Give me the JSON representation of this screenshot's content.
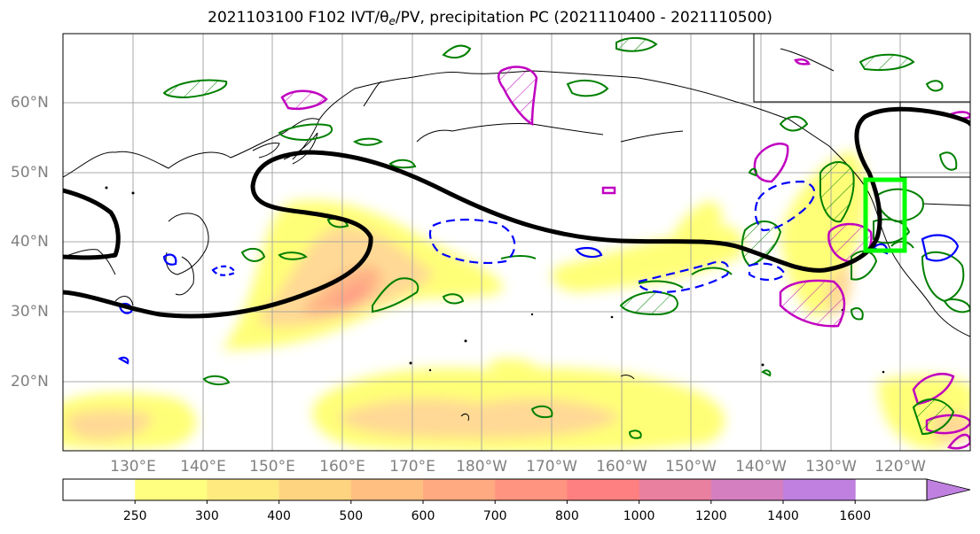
{
  "title": {
    "prefix": "2021103100 F102 IVT/θ",
    "subscript": "e",
    "suffix": "/PV, precipitation PC (2021110400 - 2021110500)"
  },
  "lat_labels": [
    "60°N",
    "50°N",
    "40°N",
    "30°N",
    "20°N"
  ],
  "lon_labels": [
    "130°E",
    "140°E",
    "150°E",
    "160°E",
    "170°E",
    "180°W",
    "170°W",
    "160°W",
    "150°W",
    "140°W",
    "130°W",
    "120°W"
  ],
  "colorbar": {
    "ticks": [
      "250",
      "300",
      "400",
      "500",
      "600",
      "700",
      "800",
      "1000",
      "1200",
      "1400",
      "1600"
    ],
    "colors": [
      "#ffffff",
      "#ffff80",
      "#ffea80",
      "#ffd480",
      "#ffbf80",
      "#ffaa80",
      "#ff9580",
      "#ff8080",
      "#ea80a0",
      "#d480c0",
      "#bf80e0"
    ],
    "extend": "max"
  },
  "legend_colors": {
    "theta_e_contour": "#000000",
    "pv_positive": "#008000",
    "pv_negative": "#0000ff",
    "precip_pc": "#c000c0",
    "target_box": "#00ff00"
  }
}
